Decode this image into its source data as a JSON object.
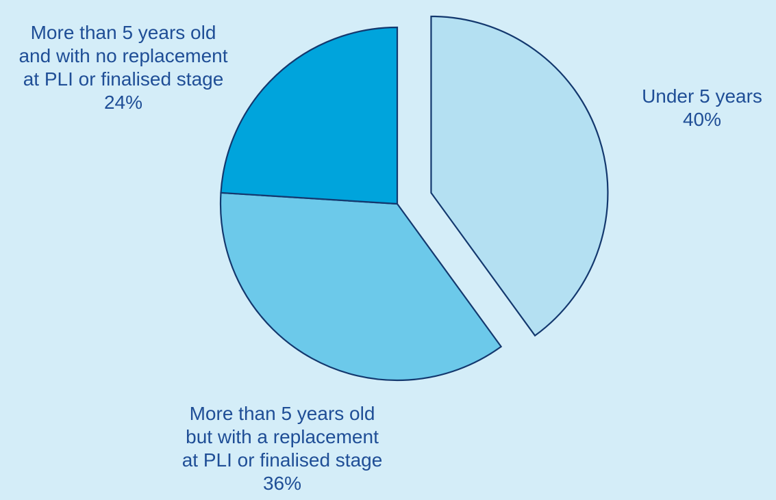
{
  "chart_data": {
    "type": "pie",
    "title": "",
    "slices": [
      {
        "label_lines": [
          "Under 5 years"
        ],
        "value": 40,
        "value_label": "40%",
        "color": "#b4e0f2",
        "exploded": true
      },
      {
        "label_lines": [
          "More than 5 years old",
          "but with a replacement",
          "at PLI or finalised stage"
        ],
        "value": 36,
        "value_label": "36%",
        "color": "#6cc9ea",
        "exploded": false
      },
      {
        "label_lines": [
          "More than 5 years old",
          "and with no replacement",
          "at PLI or finalised stage"
        ],
        "value": 24,
        "value_label": "24%",
        "color": "#00a4dc",
        "exploded": false
      }
    ],
    "start_angle_deg": 0,
    "direction": "clockwise",
    "background_color": "#d4edf8",
    "edge_color": "#13386e",
    "label_color": "#1f4e96",
    "legend": "none"
  }
}
